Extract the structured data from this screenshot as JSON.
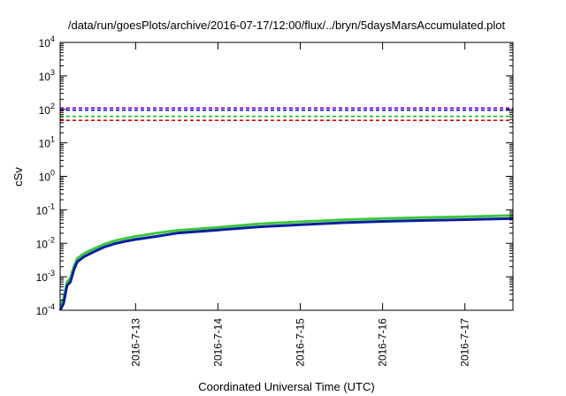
{
  "chart_data": {
    "type": "line",
    "title": "/data/run/goesPlots/archive/2016-07-17/12:00/flux/../bryn/5daysMarsAccumulated.plot",
    "xlabel": "Coordinated Universal Time (UTC)",
    "ylabel": "cSv",
    "yscale": "log",
    "xlim": [
      "2016-07-12 02:00",
      "2016-07-17 14:00"
    ],
    "ylim": [
      0.0001,
      10000
    ],
    "x_ticks": [
      "2016-7-13",
      "2016-7-14",
      "2016-7-15",
      "2016-7-16",
      "2016-7-17"
    ],
    "y_ticks": [
      {
        "base": "10",
        "exp": "-4"
      },
      {
        "base": "10",
        "exp": "-3"
      },
      {
        "base": "10",
        "exp": "-2"
      },
      {
        "base": "10",
        "exp": "-1"
      },
      {
        "base": "10",
        "exp": "0"
      },
      {
        "base": "10",
        "exp": "1"
      },
      {
        "base": "10",
        "exp": "2"
      },
      {
        "base": "10",
        "exp": "3"
      },
      {
        "base": "10",
        "exp": "4"
      }
    ],
    "grid": false,
    "legend": "none",
    "reference_lines": [
      {
        "y": 110,
        "color": "#9400d3",
        "style": "dashed"
      },
      {
        "y": 95,
        "color": "#0000cd",
        "style": "dashed"
      },
      {
        "y": 62,
        "color": "#00c000",
        "style": "dashed"
      },
      {
        "y": 47,
        "color": "#e00000",
        "style": "dashed"
      }
    ],
    "series": [
      {
        "color": "#3cc83c",
        "x": [
          "2016-07-12 02:00",
          "2016-07-12 03:00",
          "2016-07-12 04:00",
          "2016-07-12 05:00",
          "2016-07-12 06:00",
          "2016-07-12 07:00",
          "2016-07-12 09:00",
          "2016-07-12 12:00",
          "2016-07-12 15:00",
          "2016-07-12 18:00",
          "2016-07-12 21:00",
          "2016-07-13 00:00",
          "2016-07-13 06:00",
          "2016-07-13 12:00",
          "2016-07-14 00:00",
          "2016-07-14 12:00",
          "2016-07-15 00:00",
          "2016-07-15 12:00",
          "2016-07-16 00:00",
          "2016-07-16 12:00",
          "2016-07-17 00:00",
          "2016-07-17 14:00"
        ],
        "y": [
          0.00014,
          0.00022,
          0.0007,
          0.0009,
          0.002,
          0.0035,
          0.005,
          0.007,
          0.0095,
          0.012,
          0.014,
          0.016,
          0.02,
          0.024,
          0.03,
          0.038,
          0.044,
          0.05,
          0.055,
          0.059,
          0.062,
          0.068
        ]
      },
      {
        "color": "#0a1ea0",
        "x": [
          "2016-07-12 02:00",
          "2016-07-12 03:00",
          "2016-07-12 04:00",
          "2016-07-12 05:00",
          "2016-07-12 06:00",
          "2016-07-12 07:00",
          "2016-07-12 09:00",
          "2016-07-12 12:00",
          "2016-07-12 15:00",
          "2016-07-12 18:00",
          "2016-07-12 21:00",
          "2016-07-13 00:00",
          "2016-07-13 06:00",
          "2016-07-13 12:00",
          "2016-07-14 00:00",
          "2016-07-14 12:00",
          "2016-07-15 00:00",
          "2016-07-15 12:00",
          "2016-07-16 00:00",
          "2016-07-16 12:00",
          "2016-07-17 00:00",
          "2016-07-17 14:00"
        ],
        "y": [
          0.0001,
          0.00016,
          0.00055,
          0.0007,
          0.0016,
          0.0028,
          0.004,
          0.0057,
          0.0078,
          0.0098,
          0.0115,
          0.013,
          0.016,
          0.02,
          0.025,
          0.031,
          0.036,
          0.041,
          0.045,
          0.048,
          0.051,
          0.055
        ]
      }
    ]
  }
}
